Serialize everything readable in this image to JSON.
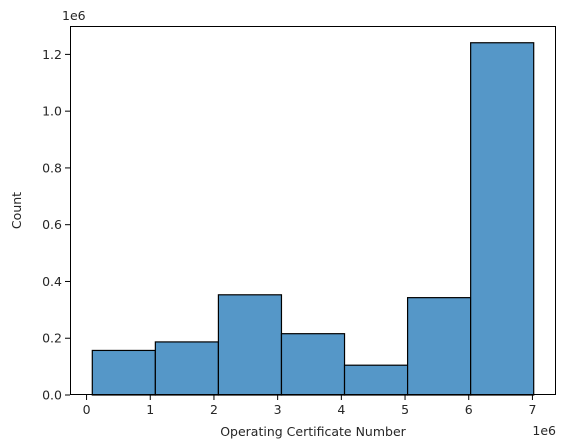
{
  "chart_data": {
    "type": "bar",
    "subtype": "histogram",
    "bins": [
      {
        "start": 0.09,
        "end": 1.08,
        "count": 0.157
      },
      {
        "start": 1.08,
        "end": 2.07,
        "count": 0.187
      },
      {
        "start": 2.07,
        "end": 3.06,
        "count": 0.353
      },
      {
        "start": 3.06,
        "end": 4.05,
        "count": 0.216
      },
      {
        "start": 4.05,
        "end": 5.04,
        "count": 0.105
      },
      {
        "start": 5.04,
        "end": 6.03,
        "count": 0.343
      },
      {
        "start": 6.03,
        "end": 7.02,
        "count": 1.241
      }
    ],
    "xlabel": "Operating Certificate Number",
    "ylabel": "Count",
    "x_offset_label": "1e6",
    "y_offset_label": "1e6",
    "xlim": [
      -0.26,
      7.37
    ],
    "ylim": [
      0,
      1.3
    ],
    "xticks": [
      0,
      1,
      2,
      3,
      4,
      5,
      6,
      7
    ],
    "yticks": [
      0.0,
      0.2,
      0.4,
      0.6,
      0.8,
      1.0,
      1.2
    ],
    "ytick_labels": [
      "0.0",
      "0.2",
      "0.4",
      "0.6",
      "0.8",
      "1.0",
      "1.2"
    ],
    "bar_color": "#5597c8",
    "edge_color": "#000000",
    "grid": false
  }
}
